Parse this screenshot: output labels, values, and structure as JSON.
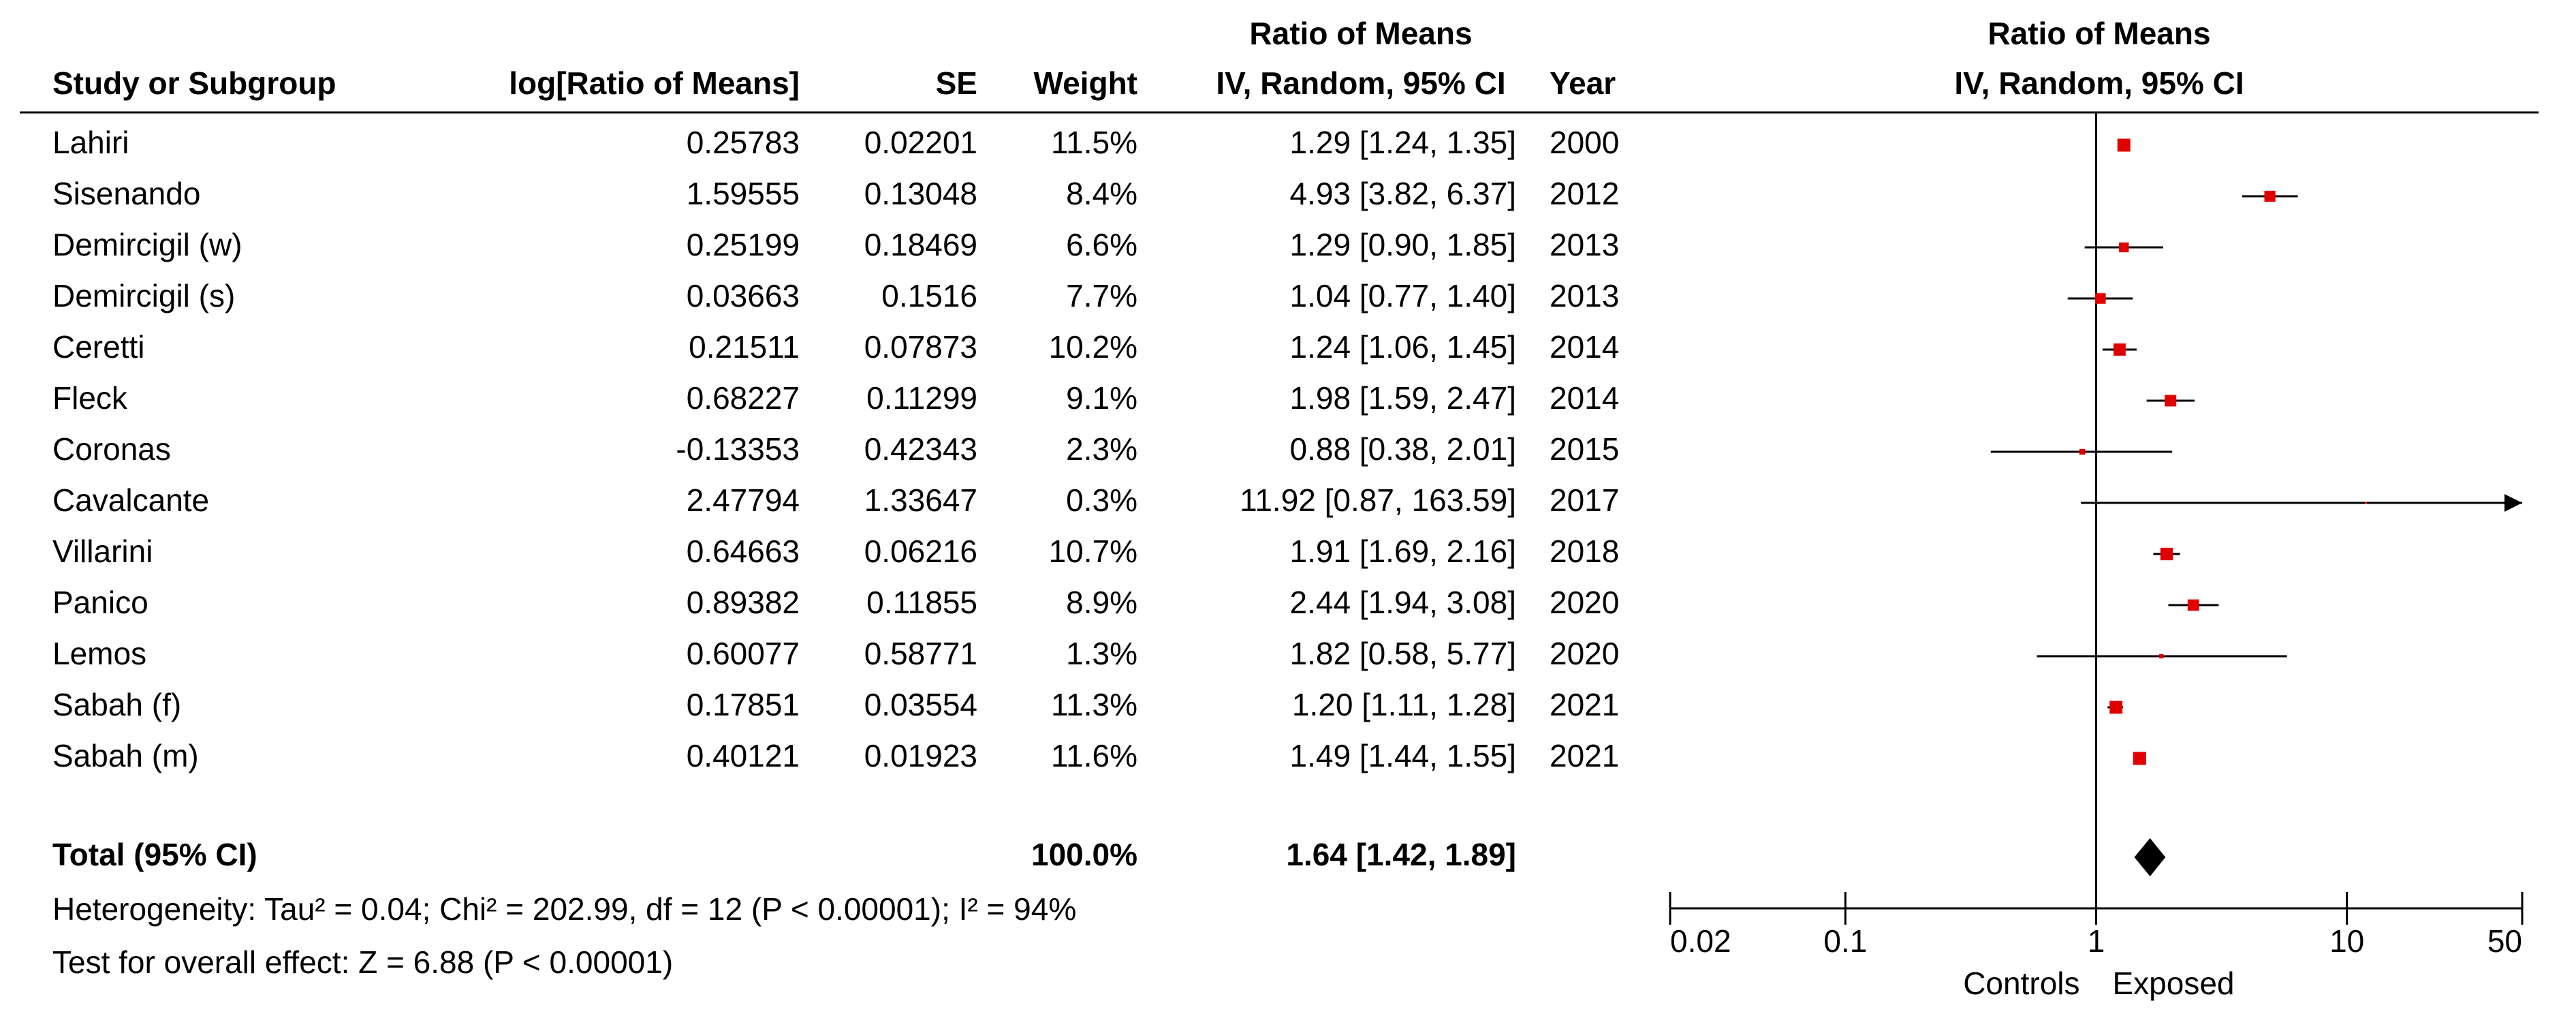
{
  "chart_data": {
    "type": "forest",
    "columns": {
      "study": "Study or Subgroup",
      "log": "log[Ratio of Means]",
      "se": "SE",
      "weight": "Weight",
      "ci_top": "Ratio of Means",
      "ci_bottom": "IV, Random, 95% CI",
      "year": "Year"
    },
    "plot_title": "Ratio of Means",
    "plot_subtitle": "IV, Random, 95% CI",
    "studies": [
      {
        "name": "Lahiri",
        "log_ratio": 0.25783,
        "se": 0.02201,
        "weight": 11.5,
        "weight_label": "11.5%",
        "estimate": 1.29,
        "lower": 1.24,
        "upper": 1.35,
        "ci_label": "1.29 [1.24, 1.35]",
        "year": 2000
      },
      {
        "name": "Sisenando",
        "log_ratio": 1.59555,
        "se": 0.13048,
        "weight": 8.4,
        "weight_label": "8.4%",
        "estimate": 4.93,
        "lower": 3.82,
        "upper": 6.37,
        "ci_label": "4.93 [3.82, 6.37]",
        "year": 2012
      },
      {
        "name": "Demircigil (w)",
        "log_ratio": 0.25199,
        "se": 0.18469,
        "weight": 6.6,
        "weight_label": "6.6%",
        "estimate": 1.29,
        "lower": 0.9,
        "upper": 1.85,
        "ci_label": "1.29 [0.90, 1.85]",
        "year": 2013
      },
      {
        "name": "Demircigil (s)",
        "log_ratio": 0.03663,
        "se": 0.1516,
        "weight": 7.7,
        "weight_label": "7.7%",
        "estimate": 1.04,
        "lower": 0.77,
        "upper": 1.4,
        "ci_label": "1.04 [0.77, 1.40]",
        "year": 2013
      },
      {
        "name": "Ceretti",
        "log_ratio": 0.21511,
        "se": 0.07873,
        "weight": 10.2,
        "weight_label": "10.2%",
        "estimate": 1.24,
        "lower": 1.06,
        "upper": 1.45,
        "ci_label": "1.24 [1.06, 1.45]",
        "year": 2014
      },
      {
        "name": "Fleck",
        "log_ratio": 0.68227,
        "se": 0.11299,
        "weight": 9.1,
        "weight_label": "9.1%",
        "estimate": 1.98,
        "lower": 1.59,
        "upper": 2.47,
        "ci_label": "1.98 [1.59, 2.47]",
        "year": 2014
      },
      {
        "name": "Coronas",
        "log_ratio": -0.13353,
        "se": 0.42343,
        "weight": 2.3,
        "weight_label": "2.3%",
        "estimate": 0.88,
        "lower": 0.38,
        "upper": 2.01,
        "ci_label": "0.88 [0.38, 2.01]",
        "year": 2015
      },
      {
        "name": "Cavalcante",
        "log_ratio": 2.47794,
        "se": 1.33647,
        "weight": 0.3,
        "weight_label": "0.3%",
        "estimate": 11.92,
        "lower": 0.87,
        "upper": 163.59,
        "ci_label": "11.92 [0.87, 163.59]",
        "year": 2017
      },
      {
        "name": "Villarini",
        "log_ratio": 0.64663,
        "se": 0.06216,
        "weight": 10.7,
        "weight_label": "10.7%",
        "estimate": 1.91,
        "lower": 1.69,
        "upper": 2.16,
        "ci_label": "1.91 [1.69, 2.16]",
        "year": 2018
      },
      {
        "name": "Panico",
        "log_ratio": 0.89382,
        "se": 0.11855,
        "weight": 8.9,
        "weight_label": "8.9%",
        "estimate": 2.44,
        "lower": 1.94,
        "upper": 3.08,
        "ci_label": "2.44 [1.94, 3.08]",
        "year": 2020
      },
      {
        "name": "Lemos",
        "log_ratio": 0.60077,
        "se": 0.58771,
        "weight": 1.3,
        "weight_label": "1.3%",
        "estimate": 1.82,
        "lower": 0.58,
        "upper": 5.77,
        "ci_label": "1.82 [0.58, 5.77]",
        "year": 2020
      },
      {
        "name": "Sabah (f)",
        "log_ratio": 0.17851,
        "se": 0.03554,
        "weight": 11.3,
        "weight_label": "11.3%",
        "estimate": 1.2,
        "lower": 1.11,
        "upper": 1.28,
        "ci_label": "1.20 [1.11, 1.28]",
        "year": 2021
      },
      {
        "name": "Sabah (m)",
        "log_ratio": 0.40121,
        "se": 0.01923,
        "weight": 11.6,
        "weight_label": "11.6%",
        "estimate": 1.49,
        "lower": 1.44,
        "upper": 1.55,
        "ci_label": "1.49 [1.44, 1.55]",
        "year": 2021
      }
    ],
    "total": {
      "name": "Total (95% CI)",
      "weight": 100,
      "weight_label": "100.0%",
      "estimate": 1.64,
      "lower": 1.42,
      "upper": 1.89,
      "ci_label": "1.64 [1.42, 1.89]"
    },
    "heterogeneity": "Heterogeneity: Tau² = 0.04; Chi² = 202.99, df = 12 (P < 0.00001); I² = 94%",
    "overall_effect": "Test for overall effect: Z = 6.88 (P < 0.00001)",
    "xlim": [
      0.02,
      50
    ],
    "xticks": [
      0.02,
      0.1,
      1,
      10,
      50
    ],
    "log_scale": true,
    "xlabel_left": "Controls",
    "xlabel_right": "Exposed",
    "color": "#e00000",
    "total_color": "#000000"
  }
}
